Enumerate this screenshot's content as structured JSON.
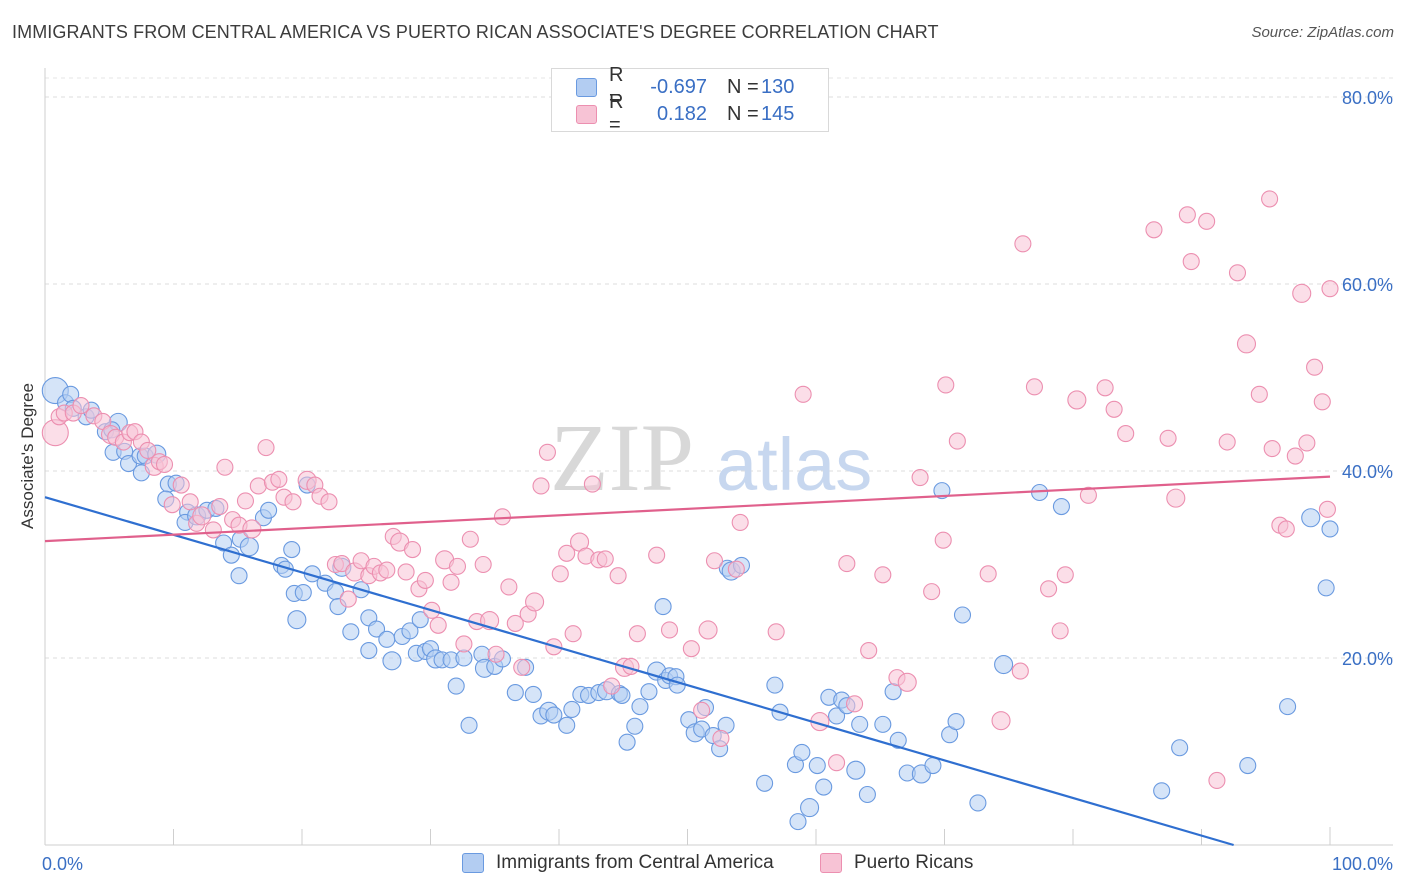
{
  "header": {
    "title": "IMMIGRANTS FROM CENTRAL AMERICA VS PUERTO RICAN ASSOCIATE'S DEGREE CORRELATION CHART",
    "source": "Source: ZipAtlas.com"
  },
  "watermark": {
    "zip": "ZIP",
    "atlas": "atlas"
  },
  "legend": {
    "series": [
      {
        "r_label": "R =",
        "r_value": "-0.697",
        "n_label": "N =",
        "n_value": "130"
      },
      {
        "r_label": "R =",
        "r_value": "0.182",
        "n_label": "N =",
        "n_value": "145"
      }
    ]
  },
  "chart_data": {
    "type": "scatter",
    "title": "IMMIGRANTS FROM CENTRAL AMERICA VS PUERTO RICAN ASSOCIATE'S DEGREE CORRELATION CHART",
    "xlabel": "",
    "ylabel": "Associate's Degree",
    "xlim": [
      0,
      100
    ],
    "ylim": [
      0,
      80
    ],
    "x_tick_labels": [
      "0.0%",
      "100.0%"
    ],
    "y_ticks": [
      20,
      40,
      60,
      80
    ],
    "y_tick_labels": [
      "20.0%",
      "40.0%",
      "60.0%",
      "80.0%"
    ],
    "grid": true,
    "colors": {
      "blue_stroke": "#6a9ae0",
      "blue_fill": "#b3cdf2",
      "blue_line": "#2f6fd0",
      "pink_stroke": "#ec8fb0",
      "pink_fill": "#f7c3d5",
      "pink_line": "#e0608c",
      "tick_label": "#3a6fc4"
    },
    "series": [
      {
        "name": "Immigrants from Central America",
        "R": -0.697,
        "N": 130,
        "trend": {
          "x": [
            0,
            92.5
          ],
          "y": [
            37.2,
            0
          ]
        },
        "points": [
          [
            0.8,
            48.6
          ],
          [
            1.6,
            47.3
          ],
          [
            2.0,
            48.2
          ],
          [
            2.2,
            46.7
          ],
          [
            3.2,
            45.8
          ],
          [
            3.6,
            46.5
          ],
          [
            4.7,
            44.2
          ],
          [
            5.7,
            45.2
          ],
          [
            5.2,
            44.4
          ],
          [
            5.3,
            42.0
          ],
          [
            6.2,
            42.1
          ],
          [
            6.5,
            40.8
          ],
          [
            7.4,
            41.6
          ],
          [
            7.8,
            41.6
          ],
          [
            8.7,
            41.8
          ],
          [
            7.5,
            39.8
          ],
          [
            9.6,
            38.6
          ],
          [
            10.2,
            38.7
          ],
          [
            9.4,
            37.0
          ],
          [
            11.1,
            35.6
          ],
          [
            10.9,
            34.5
          ],
          [
            11.8,
            35.2
          ],
          [
            12.6,
            35.8
          ],
          [
            13.3,
            36.0
          ],
          [
            13.9,
            32.3
          ],
          [
            14.5,
            31.0
          ],
          [
            15.1,
            28.8
          ],
          [
            15.2,
            32.7
          ],
          [
            15.9,
            31.9
          ],
          [
            17.0,
            35.0
          ],
          [
            17.4,
            35.8
          ],
          [
            18.4,
            29.9
          ],
          [
            18.7,
            29.5
          ],
          [
            19.2,
            31.6
          ],
          [
            19.4,
            26.9
          ],
          [
            19.6,
            24.1
          ],
          [
            20.1,
            27.0
          ],
          [
            20.4,
            38.5
          ],
          [
            20.8,
            29.0
          ],
          [
            21.8,
            28.0
          ],
          [
            22.6,
            27.1
          ],
          [
            22.8,
            25.5
          ],
          [
            23.1,
            29.7
          ],
          [
            23.8,
            22.8
          ],
          [
            24.6,
            27.3
          ],
          [
            25.2,
            24.3
          ],
          [
            25.2,
            20.8
          ],
          [
            25.8,
            23.1
          ],
          [
            26.6,
            22.0
          ],
          [
            27.0,
            19.7
          ],
          [
            27.8,
            22.3
          ],
          [
            28.4,
            22.9
          ],
          [
            28.9,
            20.5
          ],
          [
            29.2,
            24.1
          ],
          [
            29.6,
            20.7
          ],
          [
            30.0,
            21.0
          ],
          [
            30.4,
            19.9
          ],
          [
            30.9,
            19.8
          ],
          [
            31.6,
            19.8
          ],
          [
            32.0,
            17.0
          ],
          [
            32.6,
            20.0
          ],
          [
            33.0,
            12.8
          ],
          [
            34.0,
            20.4
          ],
          [
            34.2,
            18.9
          ],
          [
            35.0,
            19.1
          ],
          [
            35.6,
            19.9
          ],
          [
            36.6,
            16.3
          ],
          [
            37.4,
            19.0
          ],
          [
            38.0,
            16.1
          ],
          [
            38.6,
            13.8
          ],
          [
            39.2,
            14.3
          ],
          [
            39.6,
            13.9
          ],
          [
            40.6,
            12.8
          ],
          [
            41.0,
            14.5
          ],
          [
            41.7,
            16.1
          ],
          [
            42.3,
            16.0
          ],
          [
            43.1,
            16.3
          ],
          [
            43.7,
            16.5
          ],
          [
            44.7,
            16.2
          ],
          [
            44.9,
            16.0
          ],
          [
            45.3,
            11.0
          ],
          [
            45.9,
            12.7
          ],
          [
            46.3,
            14.8
          ],
          [
            47.0,
            16.4
          ],
          [
            47.6,
            18.6
          ],
          [
            48.1,
            25.5
          ],
          [
            48.3,
            17.6
          ],
          [
            48.6,
            18.1
          ],
          [
            49.1,
            18.0
          ],
          [
            49.2,
            17.1
          ],
          [
            50.1,
            13.4
          ],
          [
            50.6,
            12.0
          ],
          [
            51.1,
            12.4
          ],
          [
            51.4,
            14.7
          ],
          [
            52.0,
            11.7
          ],
          [
            52.5,
            10.3
          ],
          [
            53.0,
            12.8
          ],
          [
            53.1,
            29.6
          ],
          [
            53.4,
            29.3
          ],
          [
            54.2,
            29.9
          ],
          [
            56.0,
            6.6
          ],
          [
            56.8,
            17.1
          ],
          [
            57.2,
            14.2
          ],
          [
            58.4,
            8.6
          ],
          [
            58.9,
            9.9
          ],
          [
            59.5,
            4.0
          ],
          [
            60.1,
            8.5
          ],
          [
            60.6,
            6.2
          ],
          [
            61.0,
            15.8
          ],
          [
            61.6,
            13.8
          ],
          [
            62.0,
            15.5
          ],
          [
            62.4,
            14.9
          ],
          [
            63.1,
            8.0
          ],
          [
            63.4,
            12.9
          ],
          [
            64.0,
            5.4
          ],
          [
            65.2,
            12.9
          ],
          [
            66.0,
            16.4
          ],
          [
            66.4,
            11.2
          ],
          [
            67.1,
            7.7
          ],
          [
            68.2,
            7.6
          ],
          [
            69.1,
            8.5
          ],
          [
            69.8,
            37.9
          ],
          [
            70.4,
            11.8
          ],
          [
            70.9,
            13.2
          ],
          [
            71.4,
            24.6
          ],
          [
            72.6,
            4.5
          ],
          [
            74.6,
            19.3
          ],
          [
            77.4,
            37.7
          ],
          [
            79.1,
            36.2
          ],
          [
            86.9,
            5.8
          ],
          [
            88.3,
            10.4
          ],
          [
            93.6,
            8.5
          ],
          [
            96.7,
            14.8
          ],
          [
            98.5,
            35.0
          ],
          [
            100.0,
            33.8
          ],
          [
            58.6,
            2.5
          ],
          [
            99.7,
            27.5
          ]
        ]
      },
      {
        "name": "Puerto Ricans",
        "R": 0.182,
        "N": 145,
        "trend": {
          "x": [
            0,
            100
          ],
          "y": [
            32.5,
            39.4
          ]
        },
        "points": [
          [
            0.8,
            44.1
          ],
          [
            1.1,
            45.8
          ],
          [
            1.5,
            46.2
          ],
          [
            2.2,
            46.2
          ],
          [
            2.8,
            47.0
          ],
          [
            3.8,
            45.9
          ],
          [
            4.5,
            45.3
          ],
          [
            5.1,
            43.9
          ],
          [
            5.5,
            43.6
          ],
          [
            6.1,
            43.1
          ],
          [
            6.6,
            44.1
          ],
          [
            7.0,
            44.2
          ],
          [
            7.5,
            43.1
          ],
          [
            8.0,
            42.2
          ],
          [
            8.5,
            40.5
          ],
          [
            8.9,
            41.0
          ],
          [
            9.3,
            40.7
          ],
          [
            9.9,
            36.4
          ],
          [
            10.6,
            38.5
          ],
          [
            11.3,
            36.7
          ],
          [
            11.8,
            34.4
          ],
          [
            12.2,
            35.2
          ],
          [
            13.1,
            33.7
          ],
          [
            13.6,
            36.2
          ],
          [
            14.0,
            40.4
          ],
          [
            14.6,
            34.8
          ],
          [
            15.1,
            34.2
          ],
          [
            15.6,
            36.8
          ],
          [
            16.1,
            33.8
          ],
          [
            16.6,
            38.4
          ],
          [
            17.2,
            42.5
          ],
          [
            17.7,
            38.8
          ],
          [
            18.2,
            39.1
          ],
          [
            18.6,
            37.2
          ],
          [
            19.3,
            36.7
          ],
          [
            20.4,
            39.0
          ],
          [
            21.0,
            38.5
          ],
          [
            21.4,
            37.3
          ],
          [
            22.1,
            36.7
          ],
          [
            22.6,
            30.0
          ],
          [
            23.1,
            30.1
          ],
          [
            23.6,
            26.3
          ],
          [
            24.1,
            29.2
          ],
          [
            24.6,
            30.4
          ],
          [
            25.2,
            28.8
          ],
          [
            25.6,
            29.8
          ],
          [
            26.1,
            29.1
          ],
          [
            26.6,
            29.4
          ],
          [
            27.1,
            33.0
          ],
          [
            27.6,
            32.4
          ],
          [
            28.1,
            29.2
          ],
          [
            28.6,
            31.6
          ],
          [
            29.1,
            27.4
          ],
          [
            29.6,
            28.3
          ],
          [
            30.1,
            25.1
          ],
          [
            30.6,
            23.5
          ],
          [
            31.1,
            30.5
          ],
          [
            31.6,
            28.1
          ],
          [
            32.1,
            29.8
          ],
          [
            32.6,
            21.5
          ],
          [
            33.1,
            32.7
          ],
          [
            33.6,
            23.9
          ],
          [
            34.1,
            30.0
          ],
          [
            34.6,
            24.0
          ],
          [
            35.1,
            20.4
          ],
          [
            35.6,
            35.1
          ],
          [
            36.1,
            27.6
          ],
          [
            36.6,
            23.7
          ],
          [
            37.1,
            19.0
          ],
          [
            37.6,
            24.7
          ],
          [
            38.1,
            26.0
          ],
          [
            38.6,
            38.4
          ],
          [
            39.1,
            42.0
          ],
          [
            39.6,
            21.2
          ],
          [
            40.1,
            29.0
          ],
          [
            40.6,
            31.2
          ],
          [
            41.1,
            22.6
          ],
          [
            41.6,
            32.4
          ],
          [
            42.1,
            30.9
          ],
          [
            42.6,
            38.6
          ],
          [
            43.1,
            30.5
          ],
          [
            43.6,
            30.6
          ],
          [
            44.1,
            17.0
          ],
          [
            44.6,
            28.8
          ],
          [
            45.1,
            19.0
          ],
          [
            45.6,
            19.1
          ],
          [
            46.1,
            22.6
          ],
          [
            47.6,
            31.0
          ],
          [
            48.6,
            23.0
          ],
          [
            50.3,
            21.0
          ],
          [
            51.1,
            14.4
          ],
          [
            51.6,
            23.0
          ],
          [
            52.1,
            30.4
          ],
          [
            52.6,
            11.4
          ],
          [
            53.8,
            29.5
          ],
          [
            54.1,
            34.5
          ],
          [
            56.9,
            22.8
          ],
          [
            59.0,
            48.2
          ],
          [
            60.3,
            13.2
          ],
          [
            61.6,
            8.8
          ],
          [
            62.4,
            30.1
          ],
          [
            63.0,
            15.1
          ],
          [
            64.1,
            20.8
          ],
          [
            65.2,
            28.9
          ],
          [
            66.3,
            17.9
          ],
          [
            67.1,
            17.4
          ],
          [
            68.1,
            39.3
          ],
          [
            69.0,
            27.1
          ],
          [
            69.9,
            32.6
          ],
          [
            70.1,
            49.2
          ],
          [
            71.0,
            43.2
          ],
          [
            73.4,
            29.0
          ],
          [
            74.4,
            13.3
          ],
          [
            75.9,
            18.6
          ],
          [
            76.1,
            64.3
          ],
          [
            77.0,
            49.0
          ],
          [
            78.1,
            27.4
          ],
          [
            79.0,
            22.9
          ],
          [
            79.4,
            28.9
          ],
          [
            80.3,
            47.6
          ],
          [
            81.2,
            37.4
          ],
          [
            82.5,
            48.9
          ],
          [
            83.2,
            46.6
          ],
          [
            84.1,
            44.0
          ],
          [
            86.3,
            65.8
          ],
          [
            87.4,
            43.5
          ],
          [
            88.0,
            37.1
          ],
          [
            88.9,
            67.4
          ],
          [
            89.2,
            62.4
          ],
          [
            90.4,
            66.7
          ],
          [
            91.2,
            6.9
          ],
          [
            92.0,
            43.1
          ],
          [
            92.8,
            61.2
          ],
          [
            93.5,
            53.6
          ],
          [
            94.5,
            48.2
          ],
          [
            95.3,
            69.1
          ],
          [
            95.5,
            42.4
          ],
          [
            96.1,
            34.2
          ],
          [
            96.6,
            33.8
          ],
          [
            97.3,
            41.6
          ],
          [
            97.8,
            59.0
          ],
          [
            98.2,
            43.0
          ],
          [
            98.8,
            51.1
          ],
          [
            99.4,
            47.4
          ],
          [
            99.8,
            35.9
          ],
          [
            100.0,
            59.5
          ]
        ]
      }
    ]
  },
  "bottom_legend": {
    "items": [
      "Immigrants from Central America",
      "Puerto Ricans"
    ]
  }
}
